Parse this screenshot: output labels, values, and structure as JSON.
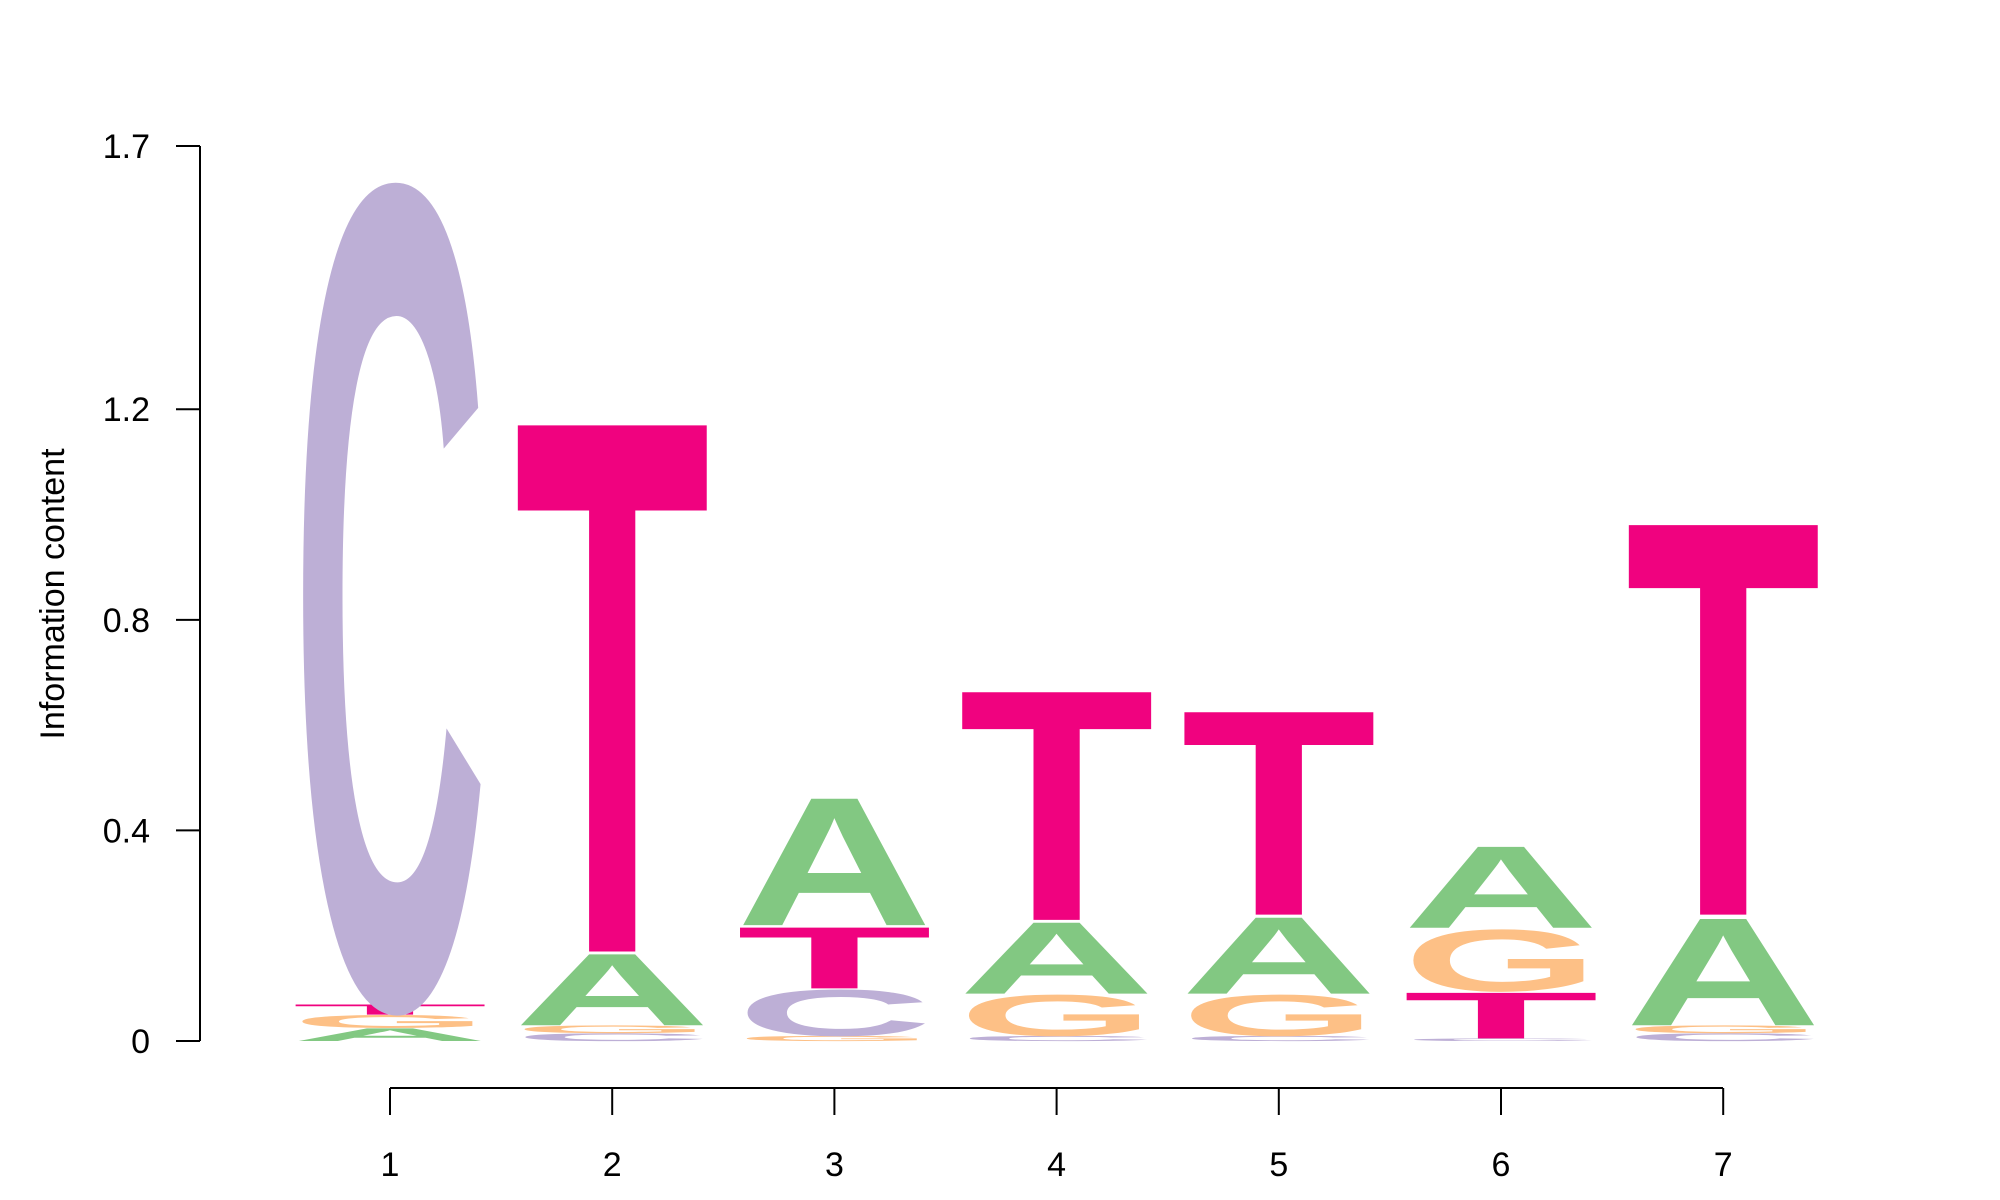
{
  "chart_data": {
    "type": "sequence-logo",
    "ylabel": "Information content",
    "ylim": [
      0,
      1.7
    ],
    "y_ticks": [
      "0",
      "0.4",
      "0.8",
      "1.2",
      "1.7"
    ],
    "y_tick_values": [
      0,
      0.4,
      0.8,
      1.2,
      1.7
    ],
    "x_ticks": [
      "1",
      "2",
      "3",
      "4",
      "5",
      "6",
      "7"
    ],
    "colors": {
      "A": "#82c882",
      "C": "#bdafd6",
      "G": "#fdc086",
      "T": "#f0027f"
    },
    "positions": [
      {
        "pos": "1",
        "stack": [
          [
            "A",
            0.025
          ],
          [
            "G",
            0.025
          ],
          [
            "T",
            0.02
          ],
          [
            "C",
            1.6
          ]
        ]
      },
      {
        "pos": "2",
        "stack": [
          [
            "C",
            0.015
          ],
          [
            "G",
            0.015
          ],
          [
            "A",
            0.14
          ],
          [
            "T",
            1.04
          ]
        ]
      },
      {
        "pos": "3",
        "stack": [
          [
            "G",
            0.01
          ],
          [
            "C",
            0.09
          ],
          [
            "T",
            0.12
          ],
          [
            "A",
            0.25
          ]
        ]
      },
      {
        "pos": "4",
        "stack": [
          [
            "C",
            0.01
          ],
          [
            "G",
            0.08
          ],
          [
            "A",
            0.14
          ],
          [
            "T",
            0.45
          ]
        ]
      },
      {
        "pos": "5",
        "stack": [
          [
            "C",
            0.01
          ],
          [
            "G",
            0.08
          ],
          [
            "A",
            0.15
          ],
          [
            "T",
            0.4
          ]
        ]
      },
      {
        "pos": "6",
        "stack": [
          [
            "C",
            0.005
          ],
          [
            "T",
            0.09
          ],
          [
            "G",
            0.12
          ],
          [
            "A",
            0.16
          ]
        ]
      },
      {
        "pos": "7",
        "stack": [
          [
            "C",
            0.015
          ],
          [
            "G",
            0.015
          ],
          [
            "A",
            0.21
          ],
          [
            "T",
            0.77
          ]
        ]
      }
    ]
  }
}
